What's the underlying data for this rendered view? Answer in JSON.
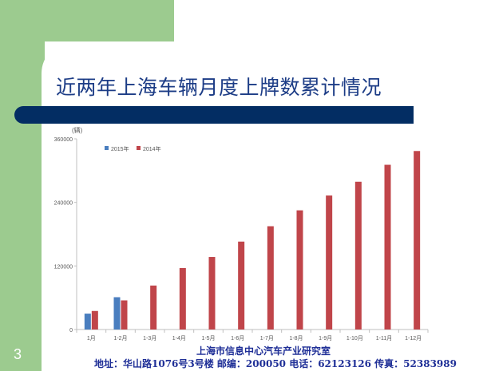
{
  "slide": {
    "title": "近两年上海车辆月度上牌数累计情况",
    "page_number": "3",
    "footer_org": "上海市信息中心汽车产业研究室",
    "footer_contact": "地址：华山路1076号3号楼  邮编：200050 电话：62123126 传真：52383989",
    "colors": {
      "green": "#9ccb8f",
      "navy": "#032d63",
      "title": "#1c3c86"
    }
  },
  "chart_data": {
    "type": "bar",
    "unit_label": "(辆)",
    "categories": [
      "1月",
      "1-2月",
      "1-3月",
      "1-4月",
      "1-5月",
      "1-6月",
      "1-7月",
      "1-8月",
      "1-9月",
      "1-10月",
      "1-11月",
      "1-12月"
    ],
    "series": [
      {
        "name": "2015年",
        "color": "#4a7ebf",
        "values": [
          30000,
          61000,
          null,
          null,
          null,
          null,
          null,
          null,
          null,
          null,
          null,
          null
        ]
      },
      {
        "name": "2014年",
        "color": "#c0454a",
        "values": [
          35000,
          55000,
          83000,
          116000,
          137000,
          166000,
          195000,
          225000,
          253000,
          279000,
          311000,
          337000
        ]
      }
    ],
    "yticks": [
      "0",
      "120000",
      "240000",
      "360000"
    ],
    "ylim": [
      0,
      360000
    ],
    "legend_position": "top-left",
    "grid": false
  }
}
